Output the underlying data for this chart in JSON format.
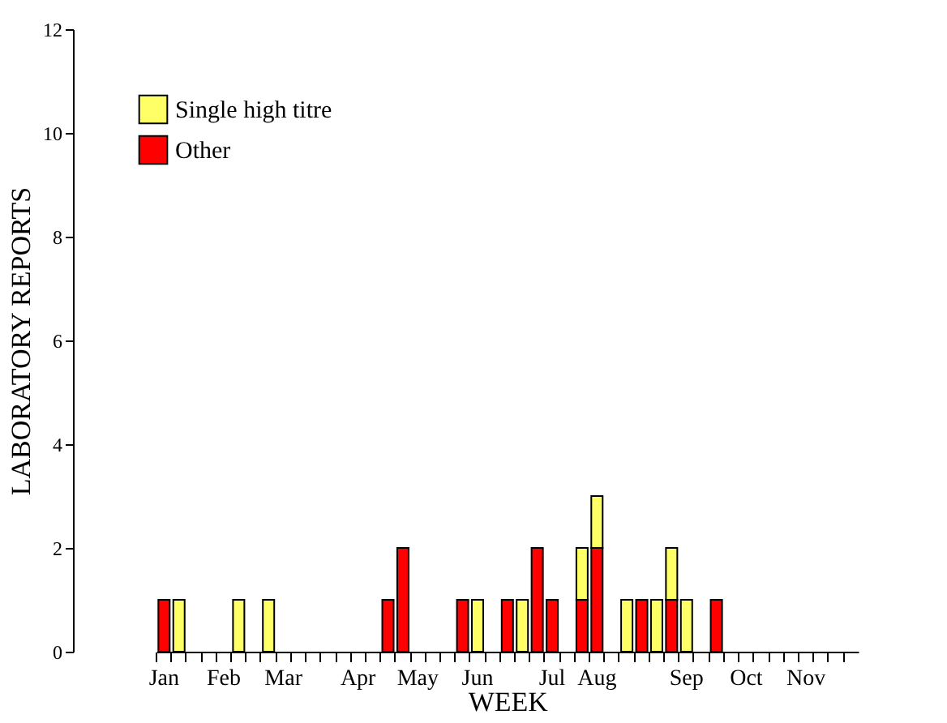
{
  "chart_data": {
    "type": "bar",
    "stacked": true,
    "xlabel": "WEEK",
    "ylabel": "LABORATORY REPORTS",
    "categories": [
      "Jan",
      null,
      null,
      null,
      "Feb",
      null,
      null,
      null,
      "Mar",
      null,
      null,
      null,
      null,
      "Apr",
      null,
      null,
      null,
      "May",
      null,
      null,
      null,
      "Jun",
      null,
      null,
      null,
      null,
      "Jul",
      null,
      null,
      "Aug",
      null,
      null,
      null,
      null,
      null,
      "Sep",
      null,
      null,
      null,
      "Oct",
      null,
      null,
      null,
      "Nov",
      null,
      null,
      null
    ],
    "series": [
      {
        "name": "Other",
        "color": "#ff0000",
        "values": [
          1,
          null,
          null,
          null,
          null,
          null,
          null,
          null,
          null,
          null,
          null,
          null,
          null,
          null,
          null,
          1,
          2,
          null,
          null,
          null,
          1,
          null,
          null,
          1,
          null,
          2,
          1,
          null,
          1,
          2,
          null,
          null,
          1,
          null,
          1,
          null,
          null,
          1,
          null,
          null,
          null,
          null,
          null,
          null,
          null,
          null,
          null
        ]
      },
      {
        "name": "Single high titre",
        "color": "#ffff66",
        "values": [
          null,
          1,
          null,
          null,
          null,
          1,
          null,
          1,
          null,
          null,
          null,
          null,
          null,
          null,
          null,
          null,
          null,
          null,
          null,
          null,
          null,
          1,
          null,
          null,
          1,
          null,
          null,
          null,
          1,
          1,
          null,
          1,
          null,
          1,
          1,
          1,
          null,
          null,
          null,
          null,
          null,
          null,
          null,
          null,
          null,
          null,
          null
        ]
      }
    ],
    "ylim": [
      0,
      12
    ],
    "yticks": [
      0,
      2,
      4,
      6,
      8,
      10,
      12
    ],
    "grid": false,
    "legend": "top left"
  }
}
